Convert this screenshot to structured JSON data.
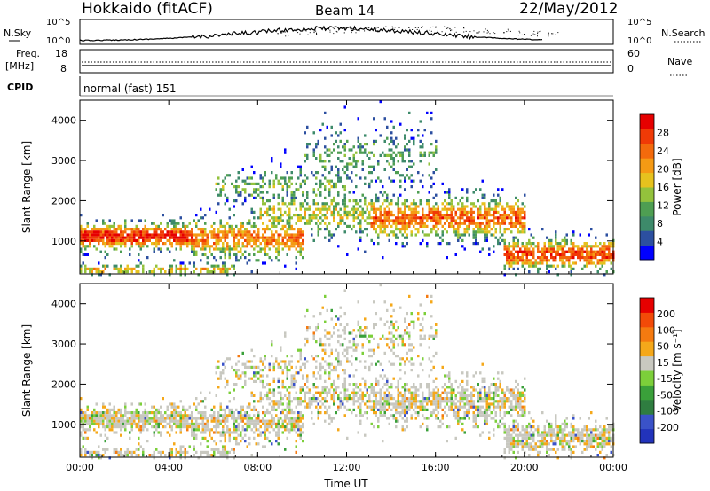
{
  "header": {
    "title": "Hokkaido (fitACF)",
    "beam": "Beam 14",
    "date": "22/May/2012"
  },
  "noise_panel": {
    "left_label": "N.Sky",
    "left_ticks": [
      "10^5",
      "10^0"
    ],
    "right_ticks": [
      "10^5",
      "10^0"
    ],
    "right_label": "N.Search"
  },
  "freq_panel": {
    "left_label_1": "Freq.",
    "left_label_2": "[MHz]",
    "left_ticks": [
      "18",
      "8"
    ],
    "right_ticks": [
      "60",
      "0"
    ],
    "right_label": "Nave"
  },
  "cpid_panel": {
    "label": "CPID",
    "text": "normal (fast) 151"
  },
  "colors": {
    "scale_power": [
      "#0000ff",
      "#2c4fa0",
      "#3d8a6a",
      "#4e9e52",
      "#93c23c",
      "#e6c21e",
      "#f59a14",
      "#f36a0c",
      "#f03a06",
      "#e60000"
    ],
    "scale_velocity": [
      "#2233bb",
      "#3a52c8",
      "#2f7d40",
      "#3aa03a",
      "#7ccf3a",
      "#c8c8c0",
      "#f5a81a",
      "#f57a10",
      "#f24a08",
      "#e60000"
    ]
  },
  "chart_data": [
    {
      "type": "heatmap",
      "panel": "power",
      "ylabel": "Slant Range [km]",
      "ylim": [
        180,
        4500
      ],
      "yticks": [
        "1000",
        "2000",
        "3000",
        "4000"
      ],
      "xticks": [
        "00:00",
        "04:00",
        "08:00",
        "12:00",
        "16:00",
        "20:00",
        "00:00"
      ],
      "colorbar_label": "Power [dB]",
      "colorbar_ticks": [
        "4",
        "8",
        "12",
        "16",
        "20",
        "24",
        "28"
      ],
      "colorbar_range": [
        0,
        30
      ]
    },
    {
      "type": "heatmap",
      "panel": "velocity",
      "ylabel": "Slant Range [km]",
      "ylim": [
        180,
        4500
      ],
      "yticks": [
        "1000",
        "2000",
        "3000",
        "4000"
      ],
      "xticks": [
        "00:00",
        "04:00",
        "08:00",
        "12:00",
        "16:00",
        "20:00",
        "00:00"
      ],
      "xlabel": "Time UT",
      "colorbar_label": "Velocity [m s⁻¹]",
      "colorbar_ticks": [
        "200",
        "100",
        "50",
        "15",
        "-15",
        "-50",
        "-100",
        "-200"
      ],
      "colorbar_range": [
        -250,
        250
      ]
    }
  ]
}
